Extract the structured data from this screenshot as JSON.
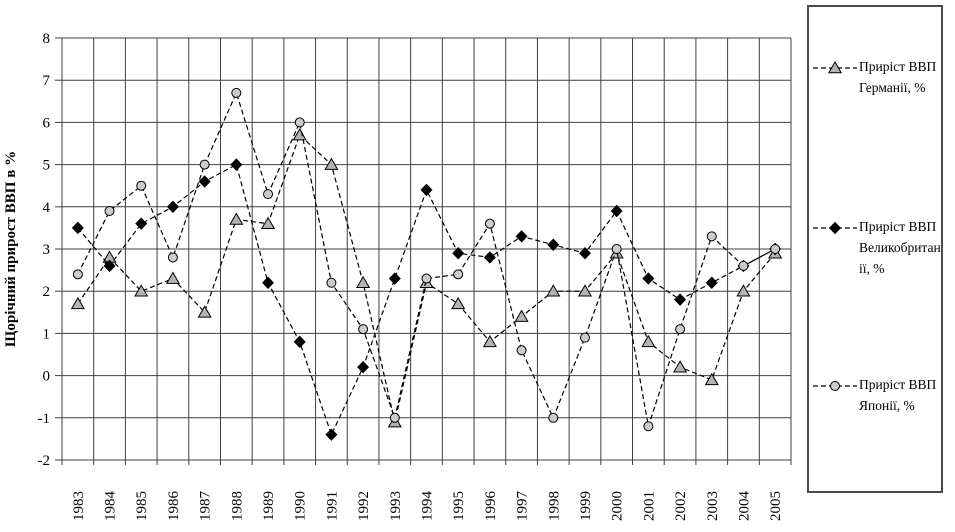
{
  "chart_data": {
    "type": "line",
    "title": "",
    "xlabel": "",
    "ylabel": "Щорічний прирост ВВП в %",
    "ylim": [
      -2,
      8
    ],
    "ytick_step": 1,
    "grid": true,
    "legend_position": "right",
    "categories": [
      "1983",
      "1984",
      "1985",
      "1986",
      "1987",
      "1988",
      "1989",
      "1990",
      "1991",
      "1992",
      "1993",
      "1994",
      "1995",
      "1996",
      "1997",
      "1998",
      "1999",
      "2000",
      "2001",
      "2002",
      "2003",
      "2004",
      "2005"
    ],
    "series": [
      {
        "name": "Приріст ВВП Германії, %",
        "marker": "triangle",
        "marker_fill": "#b3b3b3",
        "line_color": "#000000",
        "values": [
          1.7,
          2.8,
          2.0,
          2.3,
          1.5,
          3.7,
          3.6,
          5.7,
          5.0,
          2.2,
          -1.1,
          2.2,
          1.7,
          0.8,
          1.4,
          2.0,
          2.0,
          2.9,
          0.8,
          0.2,
          -0.1,
          2.0,
          2.9
        ]
      },
      {
        "name": "Приріст ВВП Великобританії, %",
        "marker": "diamond",
        "marker_fill": "#000000",
        "line_color": "#000000",
        "values": [
          3.5,
          2.6,
          3.6,
          4.0,
          4.6,
          5.0,
          2.2,
          0.8,
          -1.4,
          0.2,
          2.3,
          4.4,
          2.9,
          2.8,
          3.3,
          3.1,
          2.9,
          3.9,
          2.3,
          1.8,
          2.2,
          2.6,
          3.0
        ]
      },
      {
        "name": "Приріст ВВП Японії, %",
        "marker": "circle",
        "marker_fill": "#cccccc",
        "line_color": "#000000",
        "values": [
          2.4,
          3.9,
          4.5,
          2.8,
          5.0,
          6.7,
          4.3,
          6.0,
          2.2,
          1.1,
          -1.0,
          2.3,
          2.4,
          3.6,
          0.6,
          -1.0,
          0.9,
          3.0,
          -1.2,
          1.1,
          3.3,
          2.6,
          3.0
        ]
      }
    ],
    "colors": {
      "grid": "#3f3f3f",
      "axis_text": "#000000",
      "plot_background": "#ffffff"
    }
  }
}
